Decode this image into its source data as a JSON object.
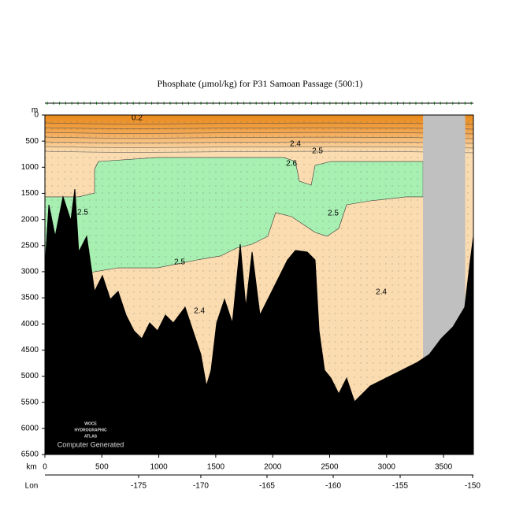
{
  "chart_data": {
    "type": "section",
    "title": "Phosphate (µmol/kg) for P31 Samoan Passage (500:1)",
    "y_label": "m",
    "x_label": "km",
    "lon_label": "Lon",
    "xlim": [
      0,
      3762
    ],
    "ylim": [
      0,
      6500
    ],
    "xticks": [
      0,
      500,
      1000,
      1500,
      2000,
      2500,
      3000,
      3500
    ],
    "yticks": [
      0,
      500,
      1000,
      1500,
      2000,
      2500,
      3000,
      3500,
      4000,
      4500,
      5000,
      5500,
      6000,
      6500
    ],
    "lon_ticks": [
      -175,
      -170,
      -165,
      -160,
      -155,
      -150
    ],
    "lon_ticks_km": [
      823,
      1369,
      1950,
      2531,
      3119,
      3755
    ],
    "bottom": {
      "color": "#000000",
      "km": [
        0,
        35,
        90,
        159,
        228,
        263,
        297,
        367,
        436,
        505,
        574,
        643,
        712,
        782,
        851,
        920,
        989,
        1058,
        1127,
        1231,
        1300,
        1369,
        1418,
        1459,
        1508,
        1577,
        1646,
        1715,
        1764,
        1819,
        1888,
        1992,
        2061,
        2130,
        2199,
        2303,
        2372,
        2407,
        2455,
        2511,
        2580,
        2649,
        2718,
        2856,
        2995,
        3133,
        3271,
        3375,
        3479,
        3583,
        3686,
        3735,
        3762
      ],
      "depth": [
        2926,
        1719,
        2322,
        1568,
        2021,
        1418,
        2624,
        2322,
        3378,
        3076,
        3529,
        3378,
        3830,
        4132,
        4283,
        3981,
        4132,
        3830,
        3981,
        3680,
        4132,
        4584,
        5188,
        4886,
        3981,
        3529,
        3981,
        2473,
        3680,
        2624,
        3830,
        3378,
        3076,
        2775,
        2594,
        2624,
        2775,
        4132,
        4886,
        5037,
        5338,
        5037,
        5489,
        5188,
        5037,
        4886,
        4735,
        4584,
        4283,
        4057,
        3680,
        2775,
        2322
      ]
    },
    "region": {
      "color": "#a8efb2",
      "km": [
        0,
        297,
        436,
        436,
        470,
        989,
        1681,
        2096,
        2199,
        2234,
        2338,
        2372,
        2511,
        3064,
        3320,
        3320,
        3168,
        2856,
        2649,
        2580,
        2476,
        2372,
        2165,
        2026,
        1957,
        1819,
        1681,
        1542,
        1335,
        989,
        643,
        436,
        297,
        0
      ],
      "depth": [
        1568,
        1568,
        1493,
        1040,
        890,
        814,
        814,
        814,
        890,
        1267,
        1342,
        965,
        890,
        890,
        890,
        1568,
        1568,
        1644,
        1719,
        2172,
        2322,
        2247,
        1945,
        1870,
        2322,
        2473,
        2549,
        2699,
        2775,
        2926,
        2926,
        3001,
        3076,
        3046
      ]
    },
    "no_data": {
      "color": "#c0c0c0",
      "km": [
        3320,
        3690
      ]
    },
    "contour_labels": [
      {
        "label": "0.2",
        "km": 809,
        "depth": 60
      },
      {
        "label": "2.4",
        "km": 2199,
        "depth": 558
      },
      {
        "label": "2.5",
        "km": 2393,
        "depth": 694
      },
      {
        "label": "2.6",
        "km": 2165,
        "depth": 935
      },
      {
        "label": "2.5",
        "km": 332,
        "depth": 1870
      },
      {
        "label": "2.5",
        "km": 2531,
        "depth": 1885
      },
      {
        "label": "2.5",
        "km": 1183,
        "depth": 2820
      },
      {
        "label": "2.4",
        "km": 2953,
        "depth": 3393
      },
      {
        "label": "2.4",
        "km": 1356,
        "depth": 3755
      }
    ],
    "watermark": [
      "WOCE",
      "HYDROGRAPHIC",
      "ATLAS",
      "Computer Generated"
    ]
  }
}
